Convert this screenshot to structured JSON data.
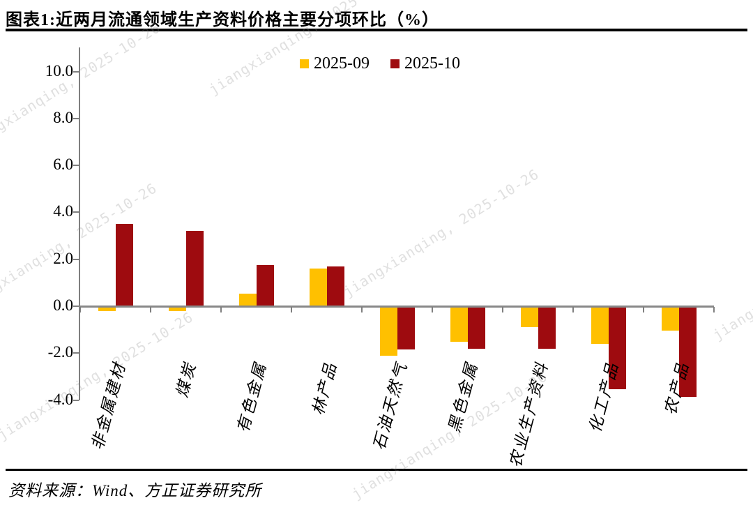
{
  "page": {
    "title": "图表1:近两月流通领域生产资料价格主要分项环比（%）",
    "source": "资料来源：Wind、方正证券研究所",
    "watermark_text": "jiangxianqing, 2025-10-26"
  },
  "chart_data": {
    "type": "bar",
    "title": "近两月流通领域生产资料价格主要分项环比（%）",
    "categories": [
      "非金属建材",
      "煤炭",
      "有色金属",
      "林产品",
      "石油天然气",
      "黑色金属",
      "农业生产资料",
      "化工产品",
      "农产品"
    ],
    "series": [
      {
        "name": "2025-09",
        "color": "#FFC000",
        "values": [
          -0.2,
          -0.2,
          0.55,
          1.6,
          -2.1,
          -1.5,
          -0.9,
          -1.6,
          -1.05
        ]
      },
      {
        "name": "2025-10",
        "color": "#9E0B0F",
        "values": [
          3.5,
          3.2,
          1.75,
          1.7,
          -1.85,
          -1.8,
          -1.8,
          -3.55,
          -3.85
        ]
      }
    ],
    "xlabel": "",
    "ylabel": "",
    "ylim": [
      -4.0,
      11.0
    ],
    "yticks": [
      10.0,
      8.0,
      6.0,
      4.0,
      2.0,
      0.0,
      -2.0,
      -4.0
    ],
    "ytick_labels": [
      "10.0",
      "8.0",
      "6.0",
      "4.0",
      "2.0",
      "0.0",
      "-2.0",
      "-4.0"
    ],
    "grid": false,
    "legend_position": "top-center"
  }
}
